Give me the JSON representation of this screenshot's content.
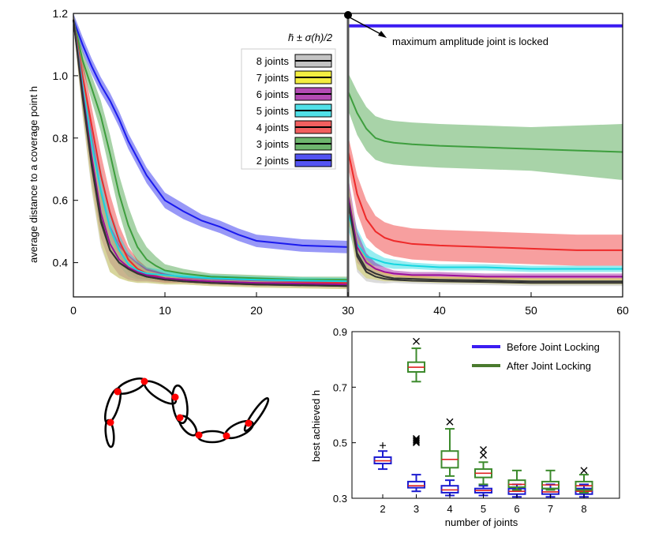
{
  "colors": {
    "j8": "#b0b0b0",
    "j7": "#f0e800",
    "j6": "#9a0f9a",
    "j5": "#16d6e0",
    "j4": "#ee2a2a",
    "j3": "#3e9e3e",
    "j2": "#1a1aee",
    "locked_line": "#3b1cf2",
    "after": "#3c8a2c",
    "before": "#1c1cd0",
    "median": "#e02020"
  },
  "chart_data": [
    {
      "type": "line",
      "title": "",
      "xlabel": "",
      "ylabel": "average distance to a coverage point h",
      "xlim": [
        0,
        60
      ],
      "ylim": [
        0.29,
        1.2
      ],
      "x_ticks": [
        "0",
        "10",
        "20",
        "30",
        "40",
        "50",
        "60"
      ],
      "y_ticks": [
        "0.4",
        "0.6",
        "0.8",
        "1.0",
        "1.2"
      ],
      "legend_title": "h̄ ± σ(h)/2",
      "legend": [
        "8 joints",
        "7 joints",
        "6 joints",
        "5 joints",
        "4 joints",
        "3 joints",
        "2 joints"
      ],
      "annotation": "maximum amplitude joint is locked",
      "locked_level": 1.16,
      "series_before": [
        {
          "name": "2 joints",
          "color_key": "j2",
          "x": [
            0,
            1,
            2,
            3,
            4,
            5,
            6,
            8,
            10,
            12,
            14,
            16,
            18,
            20,
            25,
            30
          ],
          "y": [
            1.18,
            1.1,
            1.03,
            0.97,
            0.92,
            0.86,
            0.79,
            0.68,
            0.6,
            0.565,
            0.535,
            0.515,
            0.49,
            0.47,
            0.455,
            0.45
          ],
          "sd": [
            0.02,
            0.025,
            0.025,
            0.025,
            0.025,
            0.025,
            0.025,
            0.025,
            0.025,
            0.025,
            0.02,
            0.02,
            0.02,
            0.02,
            0.02,
            0.02
          ]
        },
        {
          "name": "3 joints",
          "color_key": "j3",
          "x": [
            0,
            1,
            2,
            3,
            4,
            5,
            6,
            7,
            8,
            9,
            10,
            12,
            15,
            20,
            25,
            30
          ],
          "y": [
            1.18,
            1.05,
            0.96,
            0.87,
            0.75,
            0.62,
            0.52,
            0.45,
            0.41,
            0.39,
            0.375,
            0.365,
            0.355,
            0.35,
            0.345,
            0.345
          ],
          "sd": [
            0.02,
            0.03,
            0.04,
            0.05,
            0.06,
            0.06,
            0.06,
            0.05,
            0.04,
            0.03,
            0.02,
            0.015,
            0.01,
            0.01,
            0.01,
            0.01
          ]
        },
        {
          "name": "4 joints",
          "color_key": "j4",
          "x": [
            0,
            1,
            2,
            3,
            4,
            5,
            6,
            7,
            8,
            10,
            12,
            15,
            20,
            30
          ],
          "y": [
            1.18,
            1.0,
            0.84,
            0.68,
            0.56,
            0.47,
            0.41,
            0.38,
            0.365,
            0.35,
            0.345,
            0.34,
            0.335,
            0.335
          ],
          "sd": [
            0.02,
            0.05,
            0.06,
            0.07,
            0.06,
            0.05,
            0.04,
            0.03,
            0.02,
            0.015,
            0.01,
            0.01,
            0.01,
            0.01
          ]
        },
        {
          "name": "5 joints",
          "color_key": "j5",
          "x": [
            0,
            1,
            2,
            3,
            4,
            5,
            6,
            7,
            8,
            10,
            12,
            15,
            20,
            30
          ],
          "y": [
            1.18,
            0.97,
            0.78,
            0.63,
            0.51,
            0.44,
            0.395,
            0.375,
            0.365,
            0.36,
            0.355,
            0.35,
            0.345,
            0.34
          ],
          "sd": [
            0.02,
            0.05,
            0.07,
            0.07,
            0.06,
            0.05,
            0.04,
            0.03,
            0.02,
            0.015,
            0.01,
            0.01,
            0.01,
            0.01
          ]
        },
        {
          "name": "6 joints",
          "color_key": "j6",
          "x": [
            0,
            1,
            2,
            3,
            4,
            5,
            6,
            7,
            8,
            10,
            12,
            15,
            20,
            30
          ],
          "y": [
            1.18,
            0.95,
            0.74,
            0.56,
            0.46,
            0.41,
            0.385,
            0.37,
            0.36,
            0.35,
            0.345,
            0.34,
            0.335,
            0.33
          ],
          "sd": [
            0.02,
            0.06,
            0.08,
            0.08,
            0.06,
            0.05,
            0.04,
            0.03,
            0.02,
            0.015,
            0.01,
            0.01,
            0.01,
            0.01
          ]
        },
        {
          "name": "7 joints",
          "color_key": "j7",
          "x": [
            0,
            1,
            2,
            3,
            4,
            5,
            6,
            7,
            8,
            10,
            12,
            15,
            20,
            30
          ],
          "y": [
            1.18,
            0.94,
            0.72,
            0.54,
            0.44,
            0.4,
            0.38,
            0.365,
            0.355,
            0.345,
            0.34,
            0.335,
            0.33,
            0.325
          ],
          "sd": [
            0.02,
            0.06,
            0.08,
            0.08,
            0.07,
            0.05,
            0.04,
            0.03,
            0.02,
            0.015,
            0.01,
            0.01,
            0.01,
            0.01
          ]
        },
        {
          "name": "8 joints",
          "color_key": "j8",
          "x": [
            0,
            1,
            2,
            3,
            4,
            5,
            6,
            7,
            8,
            10,
            12,
            15,
            20,
            30
          ],
          "y": [
            1.18,
            0.93,
            0.71,
            0.53,
            0.44,
            0.4,
            0.38,
            0.365,
            0.355,
            0.345,
            0.34,
            0.335,
            0.33,
            0.325
          ],
          "sd": [
            0.02,
            0.06,
            0.08,
            0.08,
            0.07,
            0.05,
            0.04,
            0.03,
            0.02,
            0.015,
            0.01,
            0.01,
            0.01,
            0.01
          ]
        }
      ],
      "series_after": [
        {
          "name": "2 joints",
          "color_key": "j2",
          "x": [
            30,
            60
          ],
          "y": [
            1.16,
            1.16
          ],
          "sd": [
            0,
            0
          ]
        },
        {
          "name": "3 joints",
          "color_key": "j3",
          "x": [
            30,
            31,
            32,
            33,
            34,
            35,
            37,
            40,
            45,
            50,
            55,
            60
          ],
          "y": [
            0.95,
            0.88,
            0.83,
            0.8,
            0.79,
            0.785,
            0.78,
            0.775,
            0.77,
            0.765,
            0.76,
            0.755
          ],
          "sd": [
            0.06,
            0.07,
            0.07,
            0.07,
            0.07,
            0.07,
            0.07,
            0.07,
            0.07,
            0.07,
            0.08,
            0.09
          ]
        },
        {
          "name": "4 joints",
          "color_key": "j4",
          "x": [
            30,
            31,
            32,
            33,
            34,
            35,
            37,
            40,
            45,
            50,
            55,
            60
          ],
          "y": [
            0.76,
            0.62,
            0.54,
            0.5,
            0.48,
            0.47,
            0.46,
            0.455,
            0.45,
            0.445,
            0.44,
            0.44
          ],
          "sd": [
            0.05,
            0.06,
            0.06,
            0.05,
            0.05,
            0.05,
            0.05,
            0.05,
            0.05,
            0.05,
            0.05,
            0.05
          ]
        },
        {
          "name": "5 joints",
          "color_key": "j5",
          "x": [
            30,
            31,
            32,
            33,
            34,
            35,
            37,
            40,
            45,
            50,
            55,
            60
          ],
          "y": [
            0.56,
            0.46,
            0.42,
            0.41,
            0.4,
            0.395,
            0.39,
            0.385,
            0.385,
            0.38,
            0.38,
            0.38
          ],
          "sd": [
            0.05,
            0.05,
            0.03,
            0.02,
            0.015,
            0.015,
            0.01,
            0.01,
            0.01,
            0.01,
            0.01,
            0.01
          ]
        },
        {
          "name": "6 joints",
          "color_key": "j6",
          "x": [
            30,
            31,
            32,
            33,
            34,
            35,
            37,
            40,
            45,
            50,
            55,
            60
          ],
          "y": [
            0.62,
            0.45,
            0.4,
            0.38,
            0.37,
            0.365,
            0.36,
            0.36,
            0.355,
            0.355,
            0.355,
            0.355
          ],
          "sd": [
            0.06,
            0.05,
            0.03,
            0.02,
            0.015,
            0.01,
            0.01,
            0.01,
            0.01,
            0.01,
            0.01,
            0.01
          ]
        },
        {
          "name": "7 joints",
          "color_key": "j7",
          "x": [
            30,
            31,
            32,
            33,
            34,
            35,
            37,
            40,
            45,
            50,
            55,
            60
          ],
          "y": [
            0.6,
            0.43,
            0.38,
            0.365,
            0.355,
            0.35,
            0.348,
            0.345,
            0.343,
            0.34,
            0.34,
            0.34
          ],
          "sd": [
            0.06,
            0.05,
            0.03,
            0.02,
            0.015,
            0.01,
            0.01,
            0.01,
            0.01,
            0.01,
            0.01,
            0.01
          ]
        },
        {
          "name": "8 joints",
          "color_key": "j8",
          "x": [
            30,
            31,
            32,
            33,
            34,
            35,
            37,
            40,
            45,
            50,
            55,
            60
          ],
          "y": [
            0.6,
            0.42,
            0.37,
            0.355,
            0.348,
            0.345,
            0.342,
            0.34,
            0.338,
            0.335,
            0.335,
            0.335
          ],
          "sd": [
            0.06,
            0.05,
            0.03,
            0.02,
            0.015,
            0.01,
            0.01,
            0.01,
            0.01,
            0.01,
            0.01,
            0.01
          ]
        }
      ]
    },
    {
      "type": "box",
      "title": "",
      "xlabel": "number of joints",
      "ylabel": "best achieved h",
      "ylim": [
        0.3,
        0.9
      ],
      "y_ticks": [
        "0.3",
        "0.5",
        "0.7",
        "0.9"
      ],
      "categories": [
        "2",
        "3",
        "4",
        "5",
        "6",
        "7",
        "8"
      ],
      "legend": [
        "Before Joint Locking",
        "After Joint Locking"
      ],
      "before": [
        {
          "cat": "2",
          "wlo": 0.405,
          "q1": 0.425,
          "med": 0.435,
          "q3": 0.448,
          "whi": 0.47,
          "outliers": [
            0.49
          ]
        },
        {
          "cat": "3",
          "wlo": 0.325,
          "q1": 0.338,
          "med": 0.345,
          "q3": 0.36,
          "whi": 0.385,
          "outliers": []
        },
        {
          "cat": "4",
          "wlo": 0.31,
          "q1": 0.32,
          "med": 0.33,
          "q3": 0.345,
          "whi": 0.365,
          "outliers": []
        },
        {
          "cat": "5",
          "wlo": 0.31,
          "q1": 0.32,
          "med": 0.328,
          "q3": 0.335,
          "whi": 0.345,
          "outliers": []
        },
        {
          "cat": "6",
          "wlo": 0.305,
          "q1": 0.315,
          "med": 0.325,
          "q3": 0.335,
          "whi": 0.35,
          "outliers": []
        },
        {
          "cat": "7",
          "wlo": 0.305,
          "q1": 0.315,
          "med": 0.323,
          "q3": 0.335,
          "whi": 0.35,
          "outliers": []
        },
        {
          "cat": "8",
          "wlo": 0.305,
          "q1": 0.315,
          "med": 0.325,
          "q3": 0.335,
          "whi": 0.35,
          "outliers": []
        }
      ],
      "after": [
        {
          "cat": "3",
          "wlo": 0.72,
          "q1": 0.755,
          "med": 0.772,
          "q3": 0.79,
          "whi": 0.84,
          "outliers": [
            0.5,
            0.505,
            0.51,
            0.515,
            0.865
          ]
        },
        {
          "cat": "4",
          "wlo": 0.38,
          "q1": 0.41,
          "med": 0.44,
          "q3": 0.47,
          "whi": 0.55,
          "outliers": [
            0.575
          ]
        },
        {
          "cat": "5",
          "wlo": 0.35,
          "q1": 0.375,
          "med": 0.39,
          "q3": 0.405,
          "whi": 0.43,
          "outliers": [
            0.455,
            0.475
          ]
        },
        {
          "cat": "6",
          "wlo": 0.33,
          "q1": 0.34,
          "med": 0.35,
          "q3": 0.365,
          "whi": 0.4,
          "outliers": []
        },
        {
          "cat": "7",
          "wlo": 0.33,
          "q1": 0.335,
          "med": 0.348,
          "q3": 0.36,
          "whi": 0.4,
          "outliers": []
        },
        {
          "cat": "8",
          "wlo": 0.32,
          "q1": 0.33,
          "med": 0.345,
          "q3": 0.36,
          "whi": 0.385,
          "outliers": [
            0.4
          ]
        }
      ]
    }
  ]
}
